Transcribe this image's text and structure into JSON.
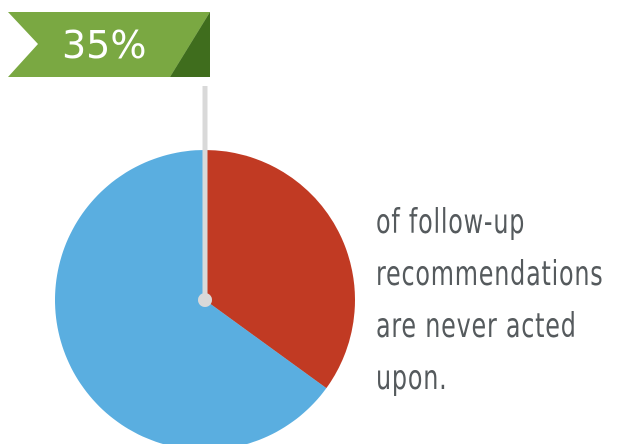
{
  "chart_data": {
    "type": "pie",
    "slices": [
      {
        "label": "35%",
        "value": 35,
        "color": "#c13a23"
      },
      {
        "label": "",
        "value": 65,
        "color": "#5aaee0"
      }
    ],
    "highlight_label": "35%",
    "caption_lines": [
      "of follow-up",
      "recommendations",
      "are never acted",
      "upon."
    ]
  },
  "colors": {
    "banner_light": "#7aa842",
    "banner_dark": "#3f6d1d",
    "pointer_line": "#d9d9d9",
    "caption_text": "#555a5d"
  }
}
